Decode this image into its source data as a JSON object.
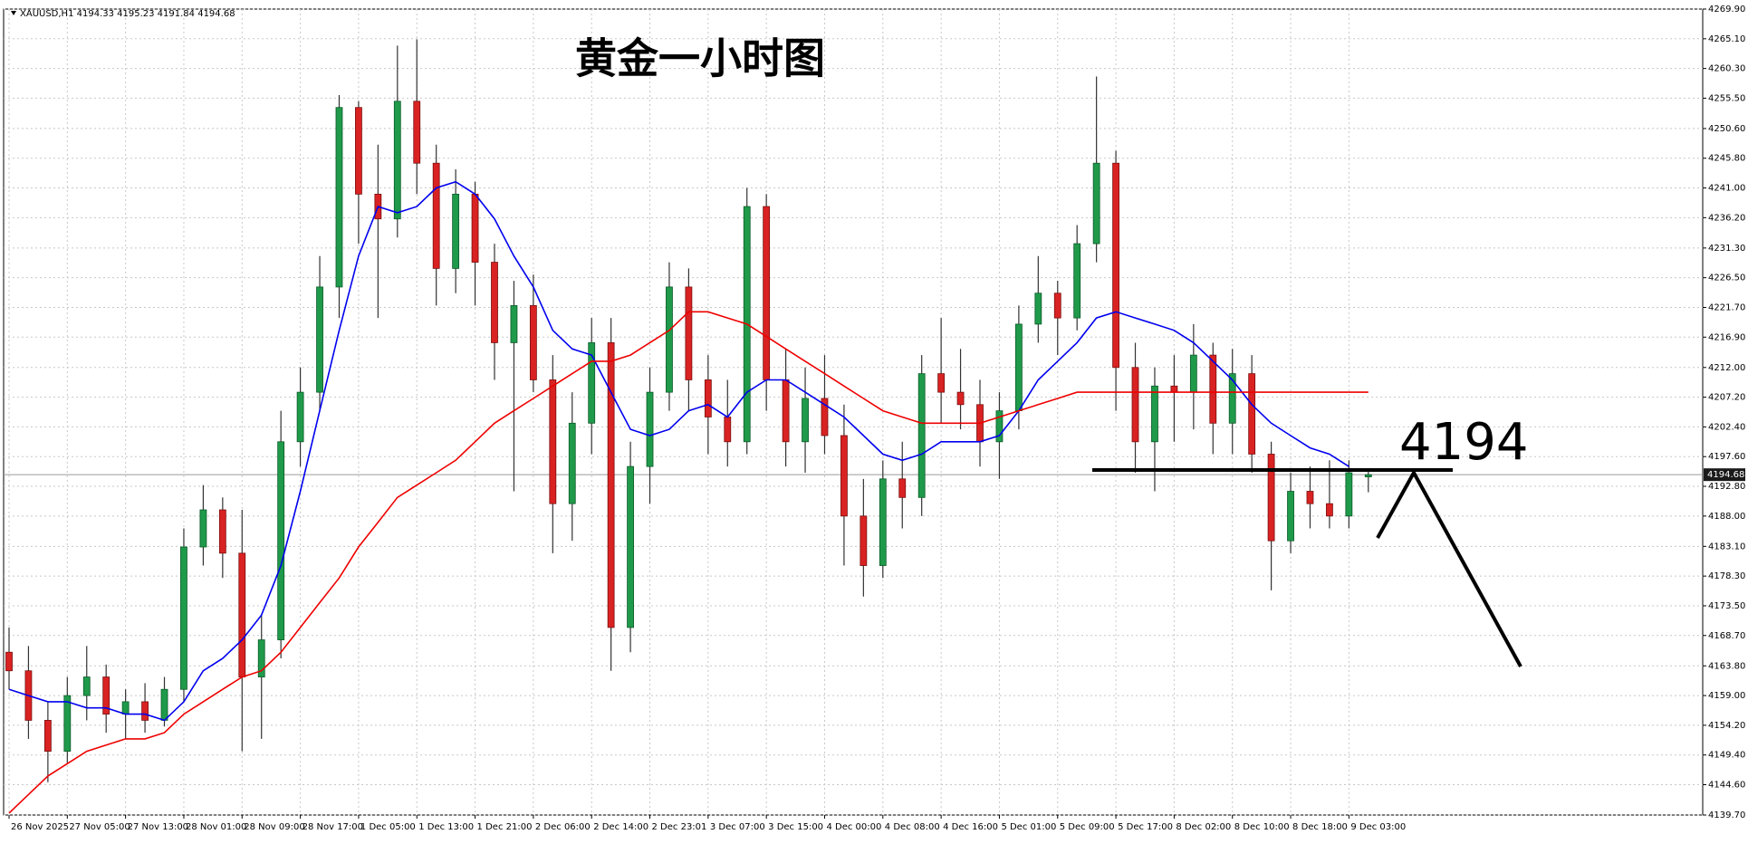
{
  "chart_data": {
    "type": "candlestick",
    "title": "黄金一小时图",
    "header": "XAUUSD,H1  4194.33 4195.23 4191.84 4194.68",
    "annotation": "4194",
    "up_color": "#1f9a4a",
    "down_color": "#d92222",
    "grid": true,
    "ylim": [
      4139.7,
      4269.9
    ],
    "yticks": [
      {
        "value": 4269.9,
        "label": "4269.90"
      },
      {
        "value": 4265.1,
        "label": "4265.10"
      },
      {
        "value": 4260.3,
        "label": "4260.30"
      },
      {
        "value": 4255.5,
        "label": "4255.50"
      },
      {
        "value": 4250.6,
        "label": "4250.60"
      },
      {
        "value": 4245.8,
        "label": "4245.80"
      },
      {
        "value": 4241,
        "label": "4241.00"
      },
      {
        "value": 4236.2,
        "label": "4236.20"
      },
      {
        "value": 4231.3,
        "label": "4231.30"
      },
      {
        "value": 4226.5,
        "label": "4226.50"
      },
      {
        "value": 4221.7,
        "label": "4221.70"
      },
      {
        "value": 4216.9,
        "label": "4216.90"
      },
      {
        "value": 4212,
        "label": "4212.00"
      },
      {
        "value": 4207.2,
        "label": "4207.20"
      },
      {
        "value": 4202.4,
        "label": "4202.40"
      },
      {
        "value": 4197.6,
        "label": "4197.60"
      },
      {
        "value": 4192.8,
        "label": "4192.80"
      },
      {
        "value": 4188,
        "label": "4188.00"
      },
      {
        "value": 4183.1,
        "label": "4183.10"
      },
      {
        "value": 4178.3,
        "label": "4178.30"
      },
      {
        "value": 4173.5,
        "label": "4173.50"
      },
      {
        "value": 4168.7,
        "label": "4168.70"
      },
      {
        "value": 4163.8,
        "label": "4163.80"
      },
      {
        "value": 4159,
        "label": "4159.00"
      },
      {
        "value": 4154.2,
        "label": "4154.20"
      },
      {
        "value": 4149.4,
        "label": "4149.40"
      },
      {
        "value": 4144.6,
        "label": "4144.60"
      },
      {
        "value": 4139.7,
        "label": "4139.70"
      }
    ],
    "current_price": 4194.68,
    "categories": [
      "26 Nov 2025",
      null,
      null,
      "27 Nov 05:00",
      null,
      null,
      "27 Nov 13:00",
      null,
      null,
      "28 Nov 01:00",
      null,
      null,
      "28 Nov 09:00",
      null,
      null,
      "28 Nov 17:00",
      null,
      null,
      "1 Dec 05:00",
      null,
      null,
      "1 Dec 13:00",
      null,
      null,
      "1 Dec 21:00",
      null,
      null,
      "2 Dec 06:00",
      null,
      null,
      "2 Dec 14:00",
      null,
      null,
      "2 Dec 23:01",
      null,
      null,
      "3 Dec 07:00",
      null,
      null,
      "3 Dec 15:00",
      null,
      null,
      "4 Dec 00:00",
      null,
      null,
      "4 Dec 08:00",
      null,
      null,
      "4 Dec 16:00",
      null,
      null,
      "5 Dec 01:00",
      null,
      null,
      "5 Dec 09:00",
      null,
      null,
      "5 Dec 17:00",
      null,
      null,
      "8 Dec 02:00",
      null,
      null,
      "8 Dec 10:00",
      null,
      null,
      "8 Dec 18:00",
      null,
      null,
      "9 Dec 03:00",
      null
    ],
    "candles": [
      [
        4166,
        4170,
        4160,
        4163
      ],
      [
        4163,
        4167,
        4152,
        4155
      ],
      [
        4155,
        4158,
        4145,
        4150
      ],
      [
        4150,
        4162,
        4148,
        4159
      ],
      [
        4159,
        4167,
        4155,
        4162
      ],
      [
        4162,
        4164,
        4153,
        4156
      ],
      [
        4156,
        4160,
        4152,
        4158
      ],
      [
        4158,
        4161,
        4153,
        4155
      ],
      [
        4155,
        4162,
        4154,
        4160
      ],
      [
        4160,
        4186,
        4158,
        4183
      ],
      [
        4183,
        4193,
        4180,
        4189
      ],
      [
        4189,
        4191,
        4178,
        4182
      ],
      [
        4182,
        4189,
        4150,
        4162
      ],
      [
        4162,
        4172,
        4152,
        4168
      ],
      [
        4168,
        4205,
        4165,
        4200
      ],
      [
        4200,
        4212,
        4196,
        4208
      ],
      [
        4208,
        4230,
        4205,
        4225
      ],
      [
        4225,
        4256,
        4220,
        4254
      ],
      [
        4254,
        4255,
        4232,
        4240
      ],
      [
        4240,
        4248,
        4220,
        4236
      ],
      [
        4236,
        4264,
        4233,
        4255
      ],
      [
        4255,
        4265,
        4240,
        4245
      ],
      [
        4245,
        4248,
        4222,
        4228
      ],
      [
        4228,
        4244,
        4224,
        4240
      ],
      [
        4240,
        4242,
        4222,
        4229
      ],
      [
        4229,
        4232,
        4210,
        4216
      ],
      [
        4216,
        4226,
        4192,
        4222
      ],
      [
        4222,
        4227,
        4208,
        4210
      ],
      [
        4210,
        4214,
        4182,
        4190
      ],
      [
        4190,
        4208,
        4184,
        4203
      ],
      [
        4203,
        4220,
        4198,
        4216
      ],
      [
        4216,
        4220,
        4163,
        4170
      ],
      [
        4170,
        4200,
        4166,
        4196
      ],
      [
        4196,
        4212,
        4190,
        4208
      ],
      [
        4208,
        4229,
        4205,
        4225
      ],
      [
        4225,
        4228,
        4205,
        4210
      ],
      [
        4210,
        4214,
        4198,
        4204
      ],
      [
        4204,
        4210,
        4196,
        4200
      ],
      [
        4200,
        4241,
        4198,
        4238
      ],
      [
        4238,
        4240,
        4205,
        4210
      ],
      [
        4210,
        4215,
        4196,
        4200
      ],
      [
        4200,
        4212,
        4195,
        4207
      ],
      [
        4207,
        4214,
        4198,
        4201
      ],
      [
        4201,
        4206,
        4180,
        4188
      ],
      [
        4188,
        4194,
        4175,
        4180
      ],
      [
        4180,
        4197,
        4178,
        4194
      ],
      [
        4194,
        4200,
        4186,
        4191
      ],
      [
        4191,
        4214,
        4188,
        4211
      ],
      [
        4211,
        4220,
        4203,
        4208
      ],
      [
        4208,
        4215,
        4202,
        4206
      ],
      [
        4206,
        4210,
        4196,
        4200
      ],
      [
        4200,
        4208,
        4194,
        4205
      ],
      [
        4205,
        4222,
        4202,
        4219
      ],
      [
        4219,
        4230,
        4216,
        4224
      ],
      [
        4224,
        4226,
        4214,
        4220
      ],
      [
        4220,
        4235,
        4218,
        4232
      ],
      [
        4232,
        4259,
        4229,
        4245
      ],
      [
        4245,
        4247,
        4205,
        4212
      ],
      [
        4212,
        4216,
        4195,
        4200
      ],
      [
        4200,
        4212,
        4192,
        4209
      ],
      [
        4209,
        4214,
        4200,
        4208
      ],
      [
        4208,
        4219,
        4202,
        4214
      ],
      [
        4214,
        4216,
        4198,
        4203
      ],
      [
        4203,
        4215,
        4198,
        4211
      ],
      [
        4211,
        4214,
        4195,
        4198
      ],
      [
        4198,
        4200,
        4176,
        4184
      ],
      [
        4184,
        4195,
        4182,
        4192
      ],
      [
        4192,
        4196,
        4186,
        4190
      ],
      [
        4190,
        4197,
        4186,
        4188
      ],
      [
        4188,
        4197,
        4186,
        4195
      ],
      [
        4194.33,
        4195.23,
        4191.84,
        4194.68
      ]
    ],
    "lines": [
      {
        "color": "#0000ee",
        "values": [
          4160,
          4159,
          4158,
          4158,
          4157,
          4157,
          4156,
          4156,
          4155,
          4158,
          4163,
          4165,
          4168,
          4172,
          4180,
          4192,
          4205,
          4218,
          4230,
          4238,
          4237,
          4238,
          4241,
          4242,
          4240,
          4236,
          4230,
          4225,
          4218,
          4215,
          4214,
          4208,
          4202,
          4201,
          4202,
          4205,
          4206,
          4204,
          4208,
          4210,
          4210,
          4208,
          4206,
          4204,
          4201,
          4198,
          4197,
          4198,
          4200,
          4200,
          4200,
          4201,
          4205,
          4210,
          4213,
          4216,
          4220,
          4221,
          4220,
          4219,
          4218,
          4216,
          4213,
          4210,
          4206,
          4203,
          4201,
          4199,
          4198,
          4196,
          null
        ]
      },
      {
        "color": "#ee0000",
        "values": [
          4140,
          4143,
          4146,
          4148,
          4150,
          4151,
          4152,
          4152,
          4153,
          4156,
          4158,
          4160,
          4162,
          4163,
          4166,
          4170,
          4174,
          4178,
          4183,
          4187,
          4191,
          4193,
          4195,
          4197,
          4200,
          4203,
          4205,
          4207,
          4209,
          4211,
          4213,
          4213,
          4214,
          4216,
          4218,
          4221,
          4221,
          4220,
          4219,
          4217,
          4215,
          4213,
          4211,
          4209,
          4207,
          4205,
          4204,
          4203,
          4203,
          4203,
          4203,
          4204,
          4205,
          4206,
          4207,
          4208,
          4208,
          4208,
          4208,
          4208,
          4208,
          4208,
          4208,
          4208,
          4208,
          4208,
          4208,
          4208,
          4208,
          4208,
          4208
        ]
      }
    ]
  }
}
